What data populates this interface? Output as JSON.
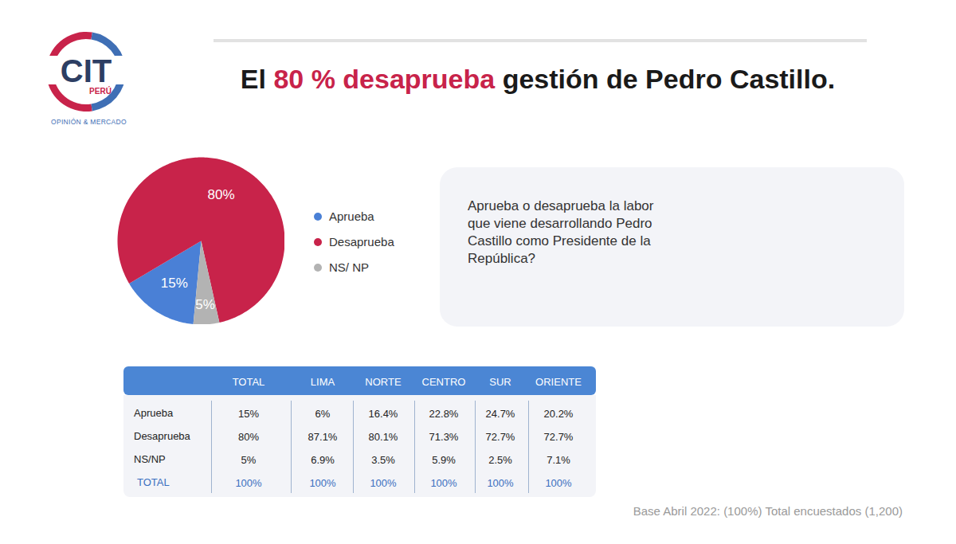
{
  "logo": {
    "name": "CIT",
    "country": "PERÚ",
    "tagline": "OPINIÓN & MERCADO"
  },
  "header": {
    "title": [
      {
        "text": "El "
      },
      {
        "text": "80 % desaprueba",
        "color": "#c8234a"
      },
      {
        "text": " gestión de Pedro Castillo."
      }
    ]
  },
  "chart_data": {
    "type": "pie",
    "categories": [
      "Aprueba",
      "Desaprueba",
      "NS/ NP"
    ],
    "values": [
      15,
      80,
      5
    ],
    "value_labels": [
      "15%",
      "80%",
      "5%"
    ],
    "colors": [
      "#4a80d6",
      "#c8234a",
      "#b3b3b3"
    ],
    "data_labels": true,
    "legend": "right"
  },
  "question": "Aprueba o desaprueba la labor que viene desarrollando Pedro Castillo como Presidente de la República?",
  "table": {
    "columns": [
      "",
      "TOTAL",
      "LIMA",
      "NORTE",
      "CENTRO",
      "SUR",
      "ORIENTE"
    ],
    "rows": [
      [
        "Aprueba",
        "15%",
        "6%",
        "16.4%",
        "22.8%",
        "24.7%",
        "20.2%"
      ],
      [
        "Desaprueba",
        "80%",
        "87.1%",
        "80.1%",
        "71.3%",
        "72.7%",
        "72.7%"
      ],
      [
        "NS/NP",
        "5%",
        "6.9%",
        "3.5%",
        "5.9%",
        "2.5%",
        "7.1%"
      ],
      [
        "TOTAL",
        "100%",
        "100%",
        "100%",
        "100%",
        "100%",
        "100%"
      ]
    ]
  },
  "footer": "Base Abril 2022: (100%) Total encuestados (1,200)"
}
